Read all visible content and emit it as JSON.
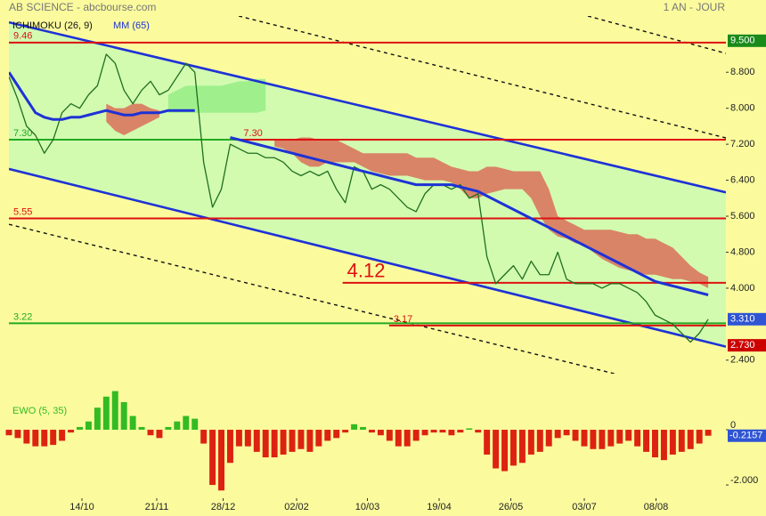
{
  "chart_data": {
    "type": "line",
    "title": "AB SCIENCE - abcbourse.com",
    "period": "1 AN - JOUR",
    "xlim": [
      0,
      81
    ],
    "xticks": [
      {
        "value": 8.25,
        "label": "14/10"
      },
      {
        "value": 16.7,
        "label": "21/11"
      },
      {
        "value": 24.2,
        "label": "28/12"
      },
      {
        "value": 32.5,
        "label": "02/02"
      },
      {
        "value": 40.5,
        "label": "10/03"
      },
      {
        "value": 48.6,
        "label": "19/04"
      },
      {
        "value": 56.7,
        "label": "26/05"
      },
      {
        "value": 65,
        "label": "03/07"
      },
      {
        "value": 73.1,
        "label": "08/08"
      }
    ],
    "ylim": [
      2.1,
      10.05
    ],
    "yticks": [
      {
        "value": 2.4,
        "label": "2.400"
      },
      {
        "value": 4.0,
        "label": "4.000"
      },
      {
        "value": 4.8,
        "label": "4.800"
      },
      {
        "value": 5.6,
        "label": "5.600"
      },
      {
        "value": 6.4,
        "label": "6.400"
      },
      {
        "value": 7.2,
        "label": "7.200"
      },
      {
        "value": 8.0,
        "label": "8.000"
      },
      {
        "value": 8.8,
        "label": "8.800"
      }
    ],
    "grid": false,
    "background": "#fbfb9e",
    "channel_fill": "#d2fbb0",
    "price": {
      "color": "#1f6f1f",
      "values": [
        8.7,
        8.2,
        7.6,
        7.4,
        7.0,
        7.3,
        7.9,
        8.1,
        8.0,
        8.3,
        8.5,
        9.2,
        9.0,
        8.4,
        8.1,
        8.4,
        8.6,
        8.3,
        8.4,
        8.7,
        9.0,
        8.8,
        6.8,
        5.8,
        6.2,
        7.2,
        7.1,
        7.0,
        7.0,
        6.9,
        6.9,
        6.8,
        6.6,
        6.5,
        6.6,
        6.5,
        6.6,
        6.2,
        5.9,
        6.7,
        6.6,
        6.2,
        6.3,
        6.2,
        6.0,
        5.8,
        5.7,
        6.1,
        6.3,
        6.3,
        6.2,
        6.3,
        6.0,
        6.1,
        4.7,
        4.1,
        4.3,
        4.5,
        4.2,
        4.6,
        4.3,
        4.3,
        4.8,
        4.2,
        4.1,
        4.1,
        4.1,
        4.0,
        4.1,
        4.1,
        4.0,
        3.9,
        3.7,
        3.4,
        3.3,
        3.2,
        3.0,
        2.8,
        3.0,
        3.31
      ]
    },
    "series": [
      {
        "name": "MM (65)",
        "color": "#1e32d6",
        "values": [
          8.8,
          8.5,
          8.2,
          7.9,
          7.8,
          7.75,
          7.75,
          7.8,
          7.8,
          7.85,
          7.9,
          7.95,
          7.9,
          7.85,
          7.85,
          7.9,
          7.9,
          7.9,
          7.95,
          7.95,
          7.95,
          7.95,
          null,
          null,
          null,
          7.35,
          7.3,
          7.25,
          7.2,
          7.15,
          7.1,
          7.05,
          7.0,
          6.95,
          6.9,
          6.85,
          6.8,
          6.75,
          6.7,
          6.65,
          6.6,
          6.55,
          6.5,
          6.45,
          6.4,
          6.35,
          6.3,
          6.3,
          6.3,
          6.3,
          6.3,
          6.25,
          6.2,
          6.15,
          6.05,
          5.95,
          5.85,
          5.75,
          5.65,
          5.55,
          5.45,
          5.35,
          5.25,
          5.15,
          5.05,
          4.95,
          4.85,
          4.75,
          4.65,
          4.55,
          4.45,
          4.35,
          4.25,
          4.15,
          4.1,
          4.05,
          4.0,
          3.95,
          3.9,
          3.85
        ]
      }
    ],
    "ichimoku": {
      "name": "ICHIMOKU (26, 9)",
      "clouds": [
        {
          "color": "#99ee88",
          "upper": [
            null,
            null,
            null,
            null,
            null,
            null,
            null,
            null,
            null,
            null,
            null,
            null,
            null,
            null,
            null,
            null,
            null,
            null,
            8.3,
            8.4,
            8.5,
            8.5,
            8.5,
            8.5,
            8.5,
            8.55,
            8.6,
            8.6,
            8.65,
            8.65,
            null,
            null,
            null,
            null,
            null,
            null,
            null,
            null,
            null,
            null,
            null,
            null,
            null,
            null,
            null,
            null,
            null,
            null,
            null,
            null,
            null,
            null,
            null,
            null,
            null,
            null,
            null,
            null,
            null,
            null,
            null,
            null,
            null,
            null,
            null,
            null,
            null,
            null,
            null,
            null,
            null,
            null,
            null,
            null,
            null,
            null,
            null,
            null,
            null,
            null
          ],
          "lower": [
            null,
            null,
            null,
            null,
            null,
            null,
            null,
            null,
            null,
            null,
            null,
            null,
            null,
            null,
            null,
            null,
            null,
            null,
            7.9,
            7.9,
            7.9,
            7.9,
            7.9,
            7.9,
            7.9,
            7.9,
            7.9,
            7.9,
            7.9,
            7.95,
            null,
            null,
            null,
            null,
            null,
            null,
            null,
            null,
            null,
            null,
            null,
            null,
            null,
            null,
            null,
            null,
            null,
            null,
            null,
            null,
            null,
            null,
            null,
            null,
            null,
            null,
            null,
            null,
            null,
            null,
            null,
            null,
            null,
            null,
            null,
            null,
            null,
            null,
            null,
            null,
            null,
            null,
            null,
            null,
            null,
            null,
            null,
            null,
            null,
            null
          ]
        },
        {
          "color": "#d9775e",
          "upper": [
            null,
            null,
            null,
            null,
            null,
            null,
            null,
            null,
            null,
            null,
            null,
            8.1,
            8.0,
            8.0,
            8.1,
            8.1,
            8.0,
            7.95,
            null,
            null,
            null,
            null,
            null,
            null,
            null,
            null,
            null,
            null,
            null,
            null,
            7.3,
            7.3,
            7.3,
            7.35,
            7.35,
            7.3,
            7.3,
            7.3,
            7.2,
            7.1,
            7.0,
            7.0,
            7.0,
            7.0,
            7.0,
            7.0,
            6.9,
            6.9,
            6.9,
            6.8,
            6.7,
            6.65,
            6.6,
            6.6,
            6.7,
            6.7,
            6.65,
            6.6,
            6.6,
            6.6,
            6.6,
            6.2,
            5.6,
            5.5,
            5.4,
            5.3,
            5.3,
            5.3,
            5.3,
            5.25,
            5.2,
            5.2,
            5.1,
            5.1,
            5.0,
            4.9,
            4.7,
            4.5,
            4.35,
            4.25
          ],
          "lower": [
            null,
            null,
            null,
            null,
            null,
            null,
            null,
            null,
            null,
            null,
            null,
            7.7,
            7.5,
            7.4,
            7.5,
            7.6,
            7.7,
            7.8,
            null,
            null,
            null,
            null,
            null,
            null,
            null,
            null,
            null,
            null,
            null,
            null,
            7.15,
            7.1,
            7.0,
            6.8,
            6.7,
            6.7,
            6.8,
            6.8,
            6.8,
            6.8,
            6.7,
            6.6,
            6.55,
            6.5,
            6.5,
            6.5,
            6.45,
            6.4,
            6.4,
            6.4,
            6.35,
            6.2,
            6.0,
            6.0,
            6.1,
            6.15,
            6.2,
            6.2,
            6.2,
            6.0,
            5.6,
            5.3,
            5.15,
            5.1,
            5.0,
            4.95,
            4.8,
            4.65,
            4.55,
            4.45,
            4.4,
            4.35,
            4.3,
            4.3,
            4.25,
            4.2,
            4.2,
            4.15,
            4.1,
            4.0
          ]
        }
      ]
    },
    "trendlines": [
      {
        "color": "#1e32d6",
        "style": "solid",
        "points": [
          [
            0,
            9.91
          ],
          [
            81,
            6.13
          ]
        ]
      },
      {
        "color": "#1e32d6",
        "style": "solid",
        "points": [
          [
            0,
            6.65
          ],
          [
            81,
            2.7
          ]
        ]
      },
      {
        "color": "#111111",
        "style": "dashed",
        "points": [
          [
            25.96,
            10.05
          ],
          [
            81,
            7.34
          ]
        ]
      },
      {
        "color": "#111111",
        "style": "dashed",
        "points": [
          [
            65.4,
            10.05
          ],
          [
            81,
            9.22
          ]
        ]
      },
      {
        "color": "#111111",
        "style": "dashed",
        "points": [
          [
            0,
            5.42
          ],
          [
            68.4,
            2.1
          ]
        ]
      }
    ],
    "levels": [
      {
        "value": 9.46,
        "label": "9.46",
        "color": "#dd1111",
        "from": 0
      },
      {
        "value": 7.3,
        "label": "7.30",
        "color": "#22aa22",
        "from": 0
      },
      {
        "value": 7.3,
        "label": "7.30",
        "color": "#dd1111",
        "from": 26
      },
      {
        "value": 5.55,
        "label": "5.55",
        "color": "#dd1111",
        "from": 0
      },
      {
        "value": 4.12,
        "label": "4.12",
        "color": "#dd1111",
        "from": 37.7,
        "style": "large"
      },
      {
        "value": 3.22,
        "label": "3.22",
        "color": "#22aa22",
        "from": 0
      },
      {
        "value": 3.17,
        "label": "3.17",
        "color": "#dd1111",
        "from": 42.95
      }
    ],
    "tags": [
      {
        "value": 9.5,
        "label": "9.500",
        "color": "#1a8a1a"
      },
      {
        "value": 3.31,
        "label": "3.310",
        "color": "#2f55d4"
      },
      {
        "value": 2.73,
        "label": "2.730",
        "color": "#cc0000"
      }
    ],
    "ewo": {
      "title": "EWO (5, 35)",
      "ylim": [
        -2.48,
        1.71
      ],
      "yticks": [
        0,
        {
          "value": -2,
          "label": "-2.000"
        }
      ],
      "up_color": "#33bb22",
      "down_color": "#dd2211",
      "tag_color": "#2f55d4",
      "values": [
        -0.2,
        -0.3,
        -0.5,
        -0.6,
        -0.6,
        -0.55,
        -0.4,
        -0.1,
        0.1,
        0.3,
        0.8,
        1.2,
        1.4,
        1.0,
        0.5,
        0.1,
        -0.2,
        -0.3,
        0.1,
        0.3,
        0.5,
        0.4,
        -0.5,
        -2.0,
        -2.2,
        -1.2,
        -0.6,
        -0.6,
        -0.8,
        -1.0,
        -1.0,
        -0.9,
        -0.8,
        -0.7,
        -0.8,
        -0.6,
        -0.4,
        -0.3,
        -0.1,
        0.2,
        0.1,
        -0.1,
        -0.2,
        -0.4,
        -0.6,
        -0.6,
        -0.4,
        -0.2,
        -0.1,
        -0.1,
        -0.2,
        -0.1,
        0.05,
        -0.1,
        -0.9,
        -1.4,
        -1.5,
        -1.3,
        -1.2,
        -0.9,
        -0.8,
        -0.6,
        -0.3,
        -0.2,
        -0.4,
        -0.6,
        -0.7,
        -0.7,
        -0.6,
        -0.5,
        -0.4,
        -0.6,
        -0.8,
        -1.0,
        -1.1,
        -0.9,
        -0.8,
        -0.7,
        -0.5,
        -0.2157
      ]
    }
  }
}
